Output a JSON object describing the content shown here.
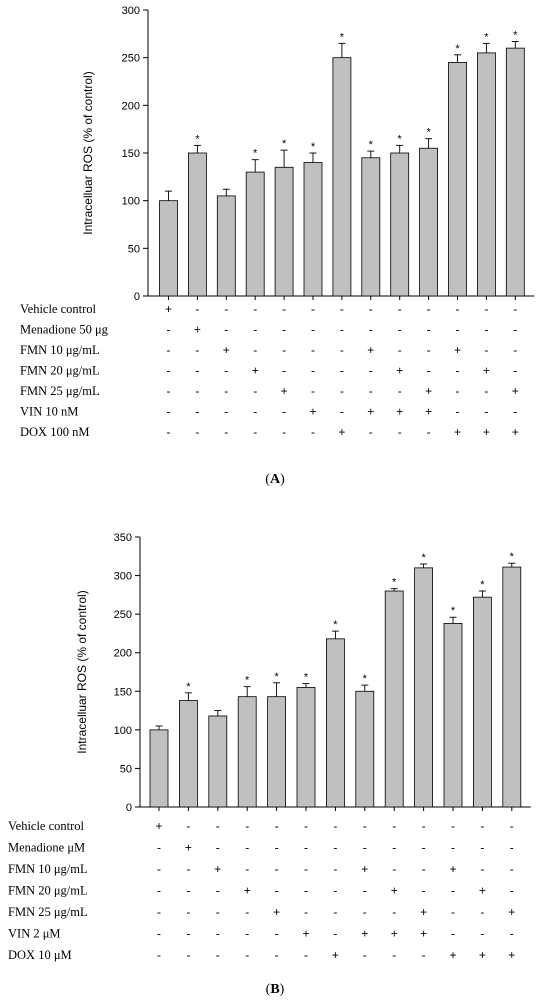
{
  "chart_data": [
    {
      "type": "bar",
      "panel_label": "A",
      "ylabel": "Intracelluar ROS (% of control)",
      "ylim": [
        0,
        300
      ],
      "yticks": [
        0,
        50,
        100,
        150,
        200,
        250,
        300
      ],
      "values": [
        100,
        150,
        105,
        130,
        135,
        140,
        250,
        145,
        150,
        155,
        245,
        255,
        260
      ],
      "errors": [
        10,
        8,
        7,
        13,
        18,
        10,
        15,
        7,
        8,
        10,
        8,
        10,
        7
      ],
      "significant": [
        false,
        true,
        false,
        true,
        true,
        true,
        true,
        true,
        true,
        true,
        true,
        true,
        true
      ],
      "star": "*",
      "treatments": [
        {
          "label": "Vehicle control",
          "signs": [
            "+",
            "-",
            "-",
            "-",
            "-",
            "-",
            "-",
            "-",
            "-",
            "-",
            "-",
            "-",
            "-"
          ]
        },
        {
          "label": "Menadione 50 μg",
          "signs": [
            "-",
            "+",
            "-",
            "-",
            "-",
            "-",
            "-",
            "-",
            "-",
            "-",
            "-",
            "-",
            "-"
          ]
        },
        {
          "label": "FMN 10 μg/mL",
          "signs": [
            "-",
            "-",
            "+",
            "-",
            "-",
            "-",
            "-",
            "+",
            "-",
            "-",
            "+",
            "-",
            "-"
          ]
        },
        {
          "label": "FMN 20 μg/mL",
          "signs": [
            "-",
            "-",
            "-",
            "+",
            "-",
            "-",
            "-",
            "-",
            "+",
            "-",
            "-",
            "+",
            "-"
          ]
        },
        {
          "label": "FMN 25 μg/mL",
          "signs": [
            "-",
            "-",
            "-",
            "-",
            "+",
            "-",
            "-",
            "-",
            "-",
            "+",
            "-",
            "-",
            "+"
          ]
        },
        {
          "label": "VIN 10 nM",
          "signs": [
            "-",
            "-",
            "-",
            "-",
            "-",
            "+",
            "-",
            "+",
            "+",
            "+",
            "-",
            "-",
            "-"
          ]
        },
        {
          "label": "DOX 100 nM",
          "signs": [
            "-",
            "-",
            "-",
            "-",
            "-",
            "-",
            "+",
            "-",
            "-",
            "-",
            "+",
            "+",
            "+"
          ]
        }
      ]
    },
    {
      "type": "bar",
      "panel_label": "B",
      "ylabel": "Intracelluar ROS (% of control)",
      "ylim": [
        0,
        350
      ],
      "yticks": [
        0,
        50,
        100,
        150,
        200,
        250,
        300,
        350
      ],
      "values": [
        100,
        138,
        118,
        143,
        143,
        155,
        218,
        150,
        280,
        310,
        238,
        272,
        311
      ],
      "errors": [
        5,
        10,
        7,
        13,
        18,
        5,
        10,
        8,
        3,
        5,
        8,
        8,
        5
      ],
      "significant": [
        false,
        true,
        false,
        true,
        true,
        true,
        true,
        true,
        true,
        true,
        true,
        true,
        true
      ],
      "star": "*",
      "treatments": [
        {
          "label": "Vehicle control",
          "signs": [
            "+",
            "-",
            "-",
            "-",
            "-",
            "-",
            "-",
            "-",
            "-",
            "-",
            "-",
            "-",
            "-"
          ]
        },
        {
          "label": "Menadione μM",
          "signs": [
            "-",
            "+",
            "-",
            "-",
            "-",
            "-",
            "-",
            "-",
            "-",
            "-",
            "-",
            "-",
            "-"
          ]
        },
        {
          "label": "FMN 10 μg/mL",
          "signs": [
            "-",
            "-",
            "+",
            "-",
            "-",
            "-",
            "-",
            "+",
            "-",
            "-",
            "+",
            "-",
            "-"
          ]
        },
        {
          "label": "FMN 20 μg/mL",
          "signs": [
            "-",
            "-",
            "-",
            "+",
            "-",
            "-",
            "-",
            "-",
            "+",
            "-",
            "-",
            "+",
            "-"
          ]
        },
        {
          "label": "FMN 25 μg/mL",
          "signs": [
            "-",
            "-",
            "-",
            "-",
            "+",
            "-",
            "-",
            "-",
            "-",
            "+",
            "-",
            "-",
            "+"
          ]
        },
        {
          "label": "VIN 2 μM",
          "signs": [
            "-",
            "-",
            "-",
            "-",
            "-",
            "+",
            "-",
            "+",
            "+",
            "+",
            "-",
            "-",
            "-"
          ]
        },
        {
          "label": "DOX 10 μM",
          "signs": [
            "-",
            "-",
            "-",
            "-",
            "-",
            "-",
            "+",
            "-",
            "-",
            "-",
            "+",
            "+",
            "+"
          ]
        }
      ]
    }
  ]
}
